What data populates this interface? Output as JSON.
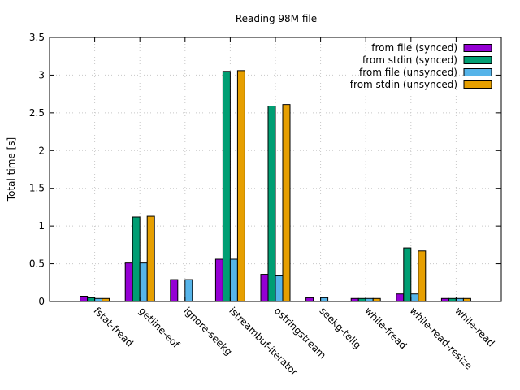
{
  "chart_data": {
    "type": "bar",
    "title": "Reading 98M file",
    "xlabel": "",
    "ylabel": "Total time [s]",
    "ylim": [
      0,
      3.5
    ],
    "yticks": [
      "0",
      "0.5",
      "1",
      "1.5",
      "2",
      "2.5",
      "3",
      "3.5"
    ],
    "grid": true,
    "legend_position": "top-right",
    "categories": [
      "fstat-fread",
      "getline-eof",
      "ignore-seekg",
      "istreambuf-iterator",
      "ostringstream",
      "seekg-tellg",
      "while-fread",
      "while-read-resize",
      "while-read"
    ],
    "series": [
      {
        "name": "from file (synced)",
        "color": "#9400d3",
        "values": [
          0.07,
          0.51,
          0.29,
          0.56,
          0.36,
          0.05,
          0.04,
          0.1,
          0.04
        ]
      },
      {
        "name": "from stdin (synced)",
        "color": "#009e73",
        "values": [
          0.05,
          1.12,
          0.0,
          3.05,
          2.59,
          0.0,
          0.04,
          0.71,
          0.04
        ]
      },
      {
        "name": "from file (unsynced)",
        "color": "#56b4e9",
        "values": [
          0.04,
          0.51,
          0.29,
          0.56,
          0.34,
          0.05,
          0.04,
          0.1,
          0.04
        ]
      },
      {
        "name": "from stdin (unsynced)",
        "color": "#e69f00",
        "values": [
          0.04,
          1.13,
          0.0,
          3.06,
          2.61,
          0.0,
          0.04,
          0.67,
          0.04
        ]
      }
    ]
  }
}
